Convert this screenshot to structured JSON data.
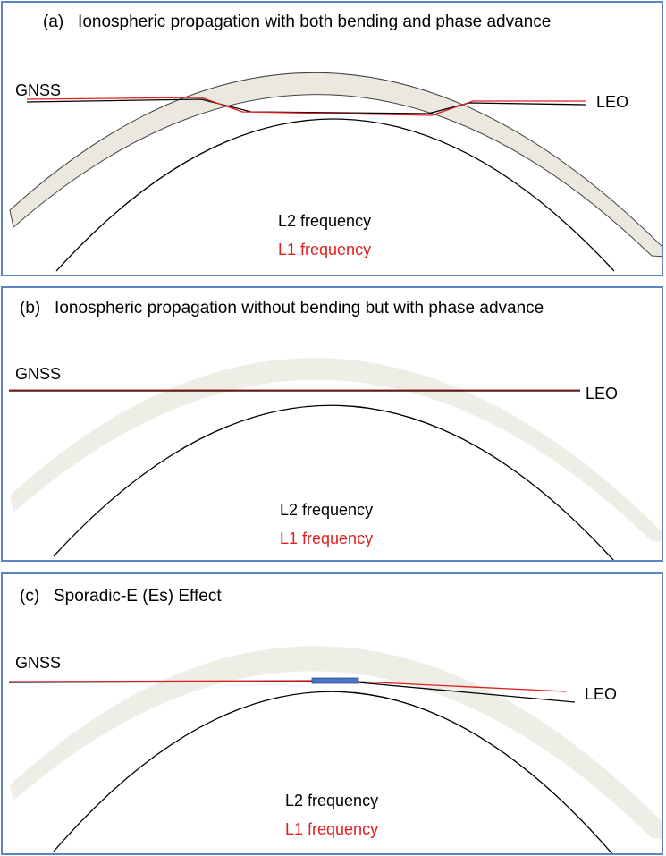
{
  "panels": [
    {
      "id": "a",
      "title": "(a)   Ionospheric propagation with both bending and phase advance",
      "transmitter": "GNSS",
      "receiver": "LEO",
      "legend": [
        "L2 frequency",
        "L1 frequency"
      ]
    },
    {
      "id": "b",
      "title": "(b)   Ionospheric propagation without bending but with phase advance",
      "transmitter": "GNSS",
      "receiver": "LEO",
      "legend": [
        "L2 frequency",
        "L1 frequency"
      ]
    },
    {
      "id": "c",
      "title": "(c)   Sporadic-E (Es) Effect",
      "transmitter": "GNSS",
      "receiver": "LEO",
      "legend": [
        "L2 frequency",
        "L1 frequency"
      ]
    }
  ],
  "colors": {
    "border": "#5b84c0",
    "ionosphere_a": "#ebe8df",
    "ionosphere_bc": "#eeede6",
    "l1": "#e02020",
    "l2": "#000000",
    "sporadic_e": "#4a74c4"
  }
}
